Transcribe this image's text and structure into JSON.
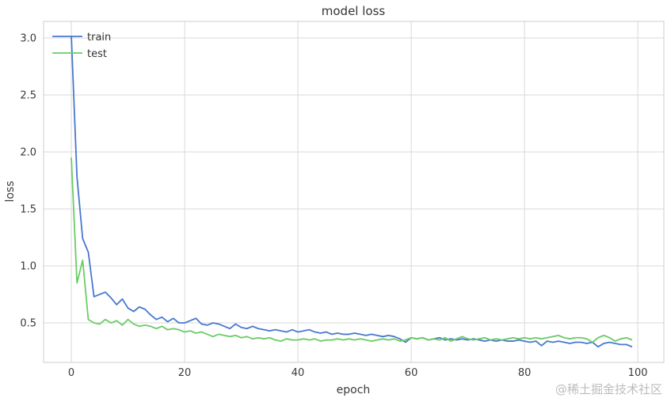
{
  "figure": {
    "title": "model loss",
    "watermark": "@稀土掘金技术社区"
  },
  "chart_data": {
    "type": "line",
    "title": "model loss",
    "xlabel": "epoch",
    "ylabel": "loss",
    "grid": true,
    "legend_position": "upper left",
    "x_start": 0,
    "x_step": 1,
    "x_ticks": [
      0,
      20,
      40,
      60,
      80,
      100
    ],
    "y_ticks": [
      0.5,
      1.0,
      1.5,
      2.0,
      2.5,
      3.0
    ],
    "xlim": [
      -4.9,
      104.6
    ],
    "ylim": [
      0.153,
      3.146
    ],
    "grid_color": "#d9d9d9",
    "spine_color": "#cccccc",
    "series": [
      {
        "name": "train",
        "color": "#4878cf",
        "values": [
          3.02,
          1.78,
          1.24,
          1.12,
          0.73,
          0.75,
          0.77,
          0.72,
          0.66,
          0.71,
          0.63,
          0.6,
          0.64,
          0.62,
          0.57,
          0.53,
          0.55,
          0.51,
          0.54,
          0.5,
          0.5,
          0.52,
          0.54,
          0.49,
          0.48,
          0.5,
          0.49,
          0.47,
          0.45,
          0.49,
          0.46,
          0.45,
          0.47,
          0.45,
          0.44,
          0.43,
          0.44,
          0.43,
          0.42,
          0.44,
          0.42,
          0.43,
          0.44,
          0.42,
          0.41,
          0.42,
          0.4,
          0.41,
          0.4,
          0.4,
          0.41,
          0.4,
          0.39,
          0.4,
          0.39,
          0.38,
          0.39,
          0.38,
          0.36,
          0.33,
          0.37,
          0.36,
          0.37,
          0.35,
          0.36,
          0.37,
          0.35,
          0.36,
          0.35,
          0.36,
          0.35,
          0.36,
          0.35,
          0.34,
          0.35,
          0.34,
          0.35,
          0.34,
          0.34,
          0.35,
          0.34,
          0.33,
          0.34,
          0.3,
          0.34,
          0.33,
          0.34,
          0.33,
          0.32,
          0.33,
          0.33,
          0.32,
          0.33,
          0.29,
          0.32,
          0.33,
          0.32,
          0.31,
          0.31,
          0.29
        ]
      },
      {
        "name": "test",
        "color": "#6acc65",
        "values": [
          1.95,
          0.85,
          1.05,
          0.53,
          0.5,
          0.49,
          0.53,
          0.5,
          0.52,
          0.48,
          0.53,
          0.49,
          0.47,
          0.48,
          0.47,
          0.45,
          0.47,
          0.44,
          0.45,
          0.44,
          0.42,
          0.43,
          0.41,
          0.42,
          0.4,
          0.38,
          0.4,
          0.39,
          0.38,
          0.39,
          0.37,
          0.38,
          0.36,
          0.37,
          0.36,
          0.37,
          0.35,
          0.34,
          0.36,
          0.35,
          0.35,
          0.36,
          0.35,
          0.36,
          0.34,
          0.35,
          0.35,
          0.36,
          0.35,
          0.36,
          0.35,
          0.36,
          0.35,
          0.34,
          0.35,
          0.36,
          0.35,
          0.36,
          0.34,
          0.35,
          0.37,
          0.36,
          0.37,
          0.35,
          0.36,
          0.35,
          0.37,
          0.34,
          0.36,
          0.38,
          0.36,
          0.35,
          0.36,
          0.37,
          0.35,
          0.36,
          0.35,
          0.36,
          0.37,
          0.36,
          0.37,
          0.36,
          0.37,
          0.36,
          0.37,
          0.38,
          0.39,
          0.37,
          0.36,
          0.37,
          0.37,
          0.36,
          0.33,
          0.37,
          0.39,
          0.37,
          0.34,
          0.36,
          0.37,
          0.35
        ]
      }
    ]
  }
}
